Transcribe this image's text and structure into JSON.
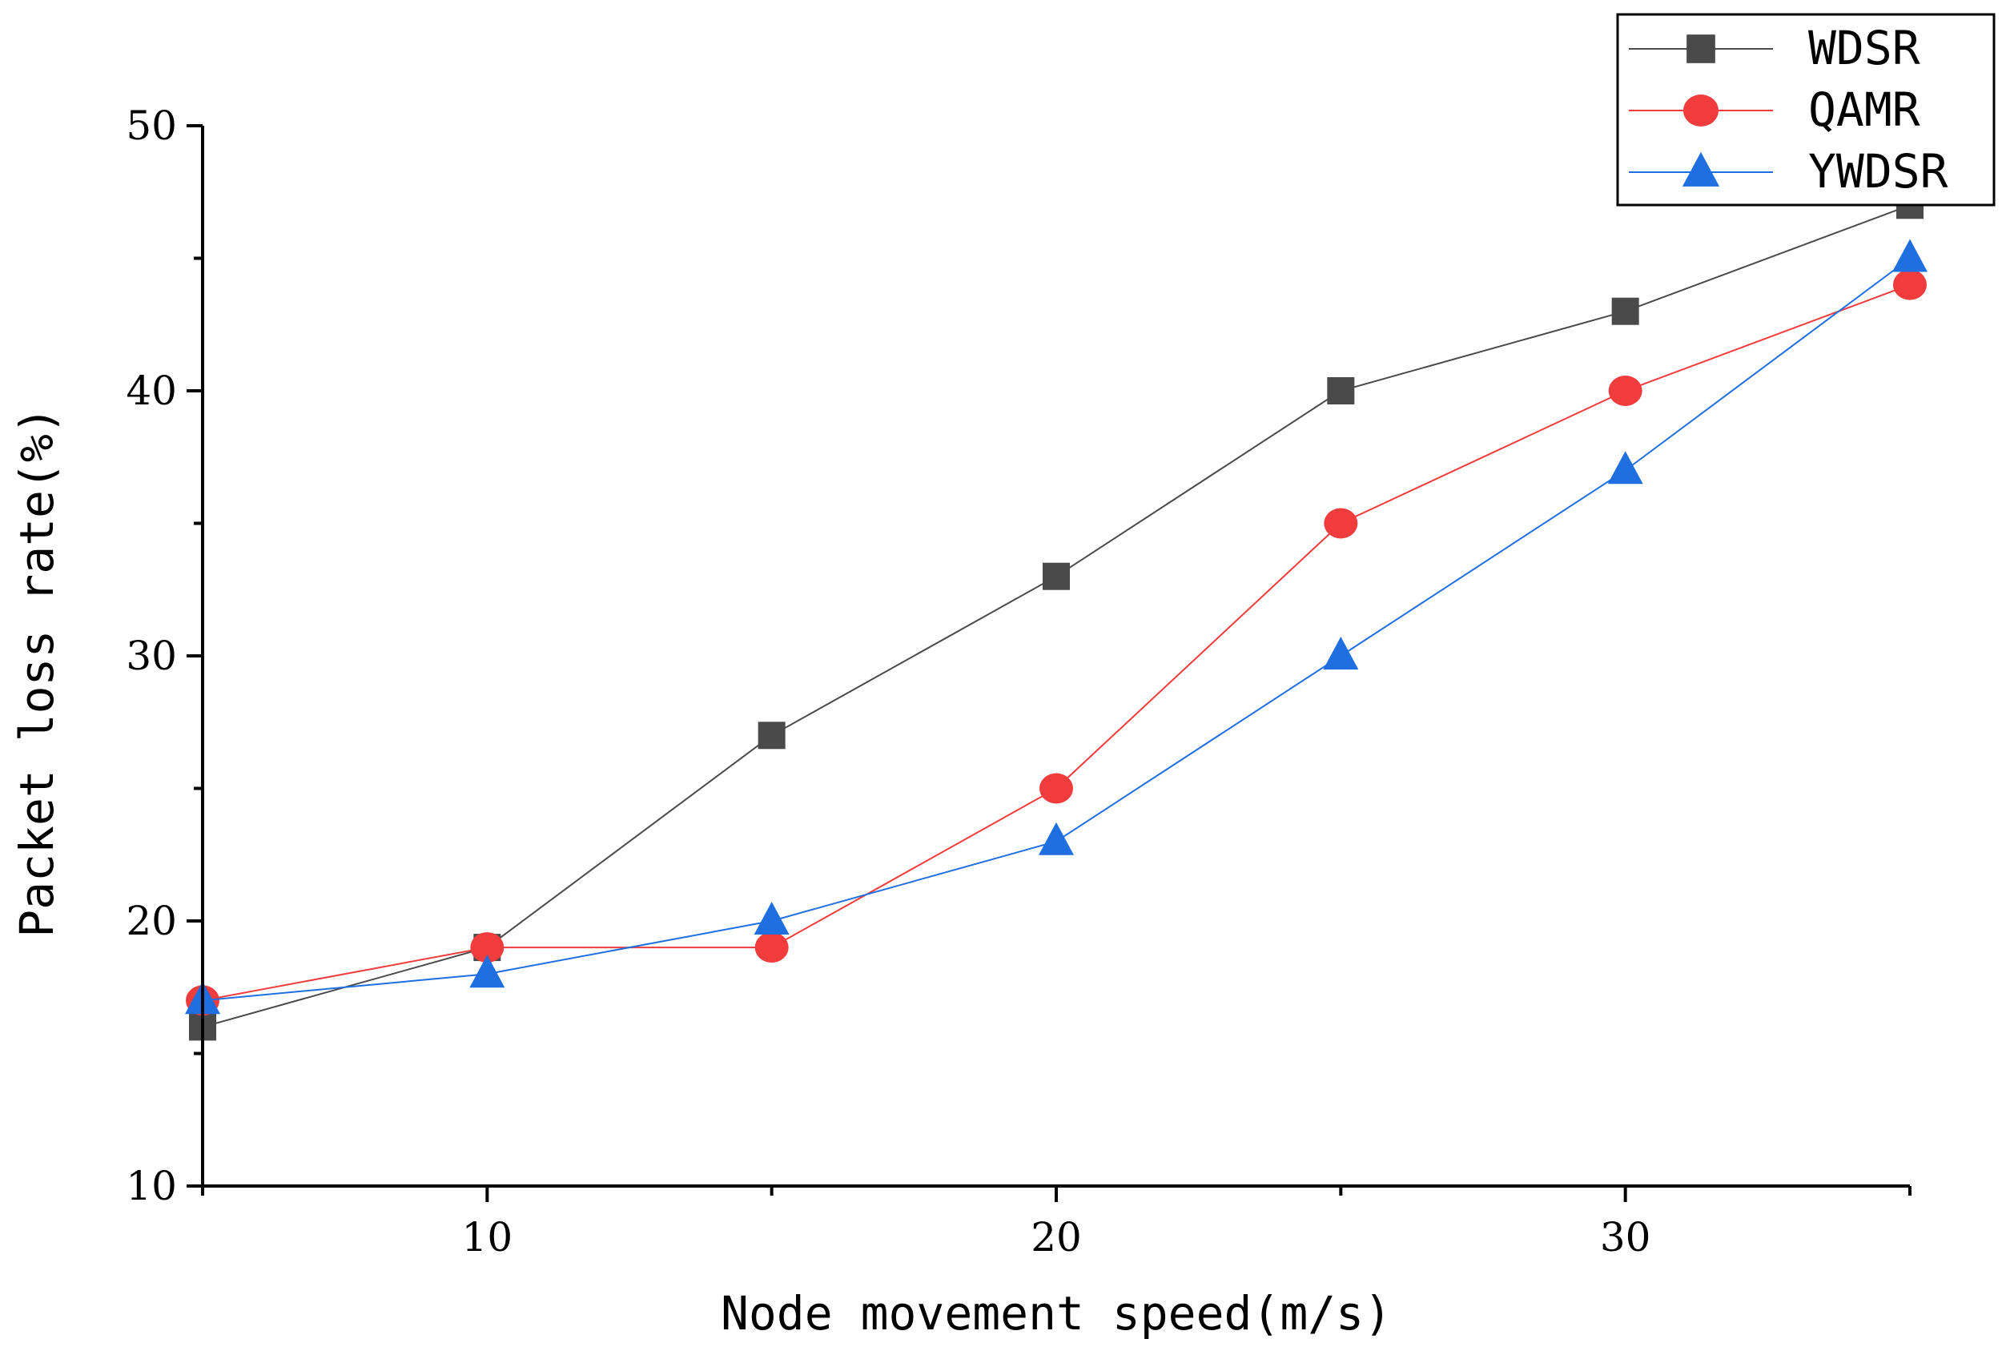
{
  "chart_data": {
    "type": "line",
    "title": "",
    "xlabel": "Node movement speed(m/s)",
    "ylabel": "Packet loss rate(%)",
    "xlim": [
      5,
      35
    ],
    "ylim": [
      10,
      50
    ],
    "x_ticks": [
      10,
      20,
      30
    ],
    "x_tick_labels": [
      "10",
      "20",
      "30"
    ],
    "x_minor_ticks": [
      5,
      15,
      25,
      35
    ],
    "y_ticks": [
      10,
      20,
      30,
      40,
      50
    ],
    "y_tick_labels": [
      "10",
      "20",
      "30",
      "40",
      "50"
    ],
    "y_minor_ticks": [
      15,
      25,
      35,
      45
    ],
    "grid": false,
    "legend_position": "top-right",
    "x": [
      5,
      10,
      15,
      20,
      25,
      30,
      35
    ],
    "series": [
      {
        "name": "WDSR",
        "marker": "square",
        "color": "#4a4a4a",
        "values": [
          16,
          19,
          27,
          33,
          40,
          43,
          47
        ]
      },
      {
        "name": "QAMR",
        "marker": "circle",
        "color": "#f03c3c",
        "values": [
          17,
          19,
          19,
          25,
          35,
          40,
          44
        ]
      },
      {
        "name": "YWDSR",
        "marker": "triangle",
        "color": "#1f6fe0",
        "values": [
          17,
          18,
          20,
          23,
          30,
          37,
          45
        ]
      }
    ]
  }
}
